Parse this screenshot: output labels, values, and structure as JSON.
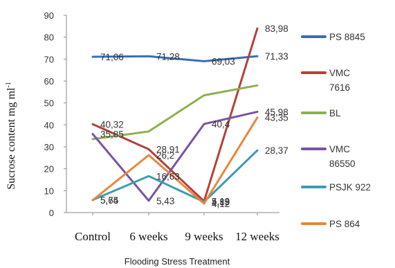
{
  "chart_data": {
    "type": "line",
    "categories": [
      "Control",
      "6 weeks",
      "9 weeks",
      "12 weeks"
    ],
    "ylabel": "Sucrose content mg ml-1",
    "ylabel_main": "Sucrose content mg ml",
    "ylabel_sup": "-1",
    "xlabel": "Flooding Stress Treatment",
    "ylim": [
      0,
      90
    ],
    "yticks": [
      0,
      10,
      20,
      30,
      40,
      50,
      60,
      70,
      80,
      90
    ],
    "grid": false,
    "legend_position": "right",
    "series": [
      {
        "name": "PS 8845",
        "name_lines": [
          "PS 8845"
        ],
        "color": "#3a6db3",
        "values": [
          71.06,
          71.28,
          69.03,
          71.33
        ],
        "labels": [
          "71,06",
          "71,28",
          "69,03",
          "71,33"
        ]
      },
      {
        "name": "VMC 7616",
        "name_lines": [
          "VMC",
          "7616"
        ],
        "color": "#b5403a",
        "values": [
          40.32,
          28.91,
          5.19,
          83.98
        ],
        "labels": [
          "40,32",
          "28,91",
          "5,19",
          "83,98"
        ]
      },
      {
        "name": "BL",
        "name_lines": [
          "BL"
        ],
        "color": "#8db04f",
        "values": [
          33.5,
          37.0,
          53.5,
          58.0
        ],
        "labels": []
      },
      {
        "name": "VMC 86550",
        "name_lines": [
          "VMC",
          "86550"
        ],
        "color": "#7952a3",
        "values": [
          35.85,
          5.43,
          40.4,
          45.98
        ],
        "labels": [
          "35,85",
          "5,43",
          "40,4",
          "45,98"
        ]
      },
      {
        "name": "PSJK 922",
        "name_lines": [
          "PSJK 922"
        ],
        "color": "#3c9cb3",
        "values": [
          5.74,
          16.63,
          4.89,
          28.37
        ],
        "labels": [
          "5,74",
          "16,63",
          "4,89",
          "28,37"
        ]
      },
      {
        "name": "PS 864",
        "name_lines": [
          "PS 864"
        ],
        "color": "#e8873a",
        "values": [
          5.65,
          26.2,
          4.12,
          43.35
        ],
        "labels": [
          "5,65",
          "26,2",
          "4,12",
          "43,35"
        ]
      }
    ]
  }
}
